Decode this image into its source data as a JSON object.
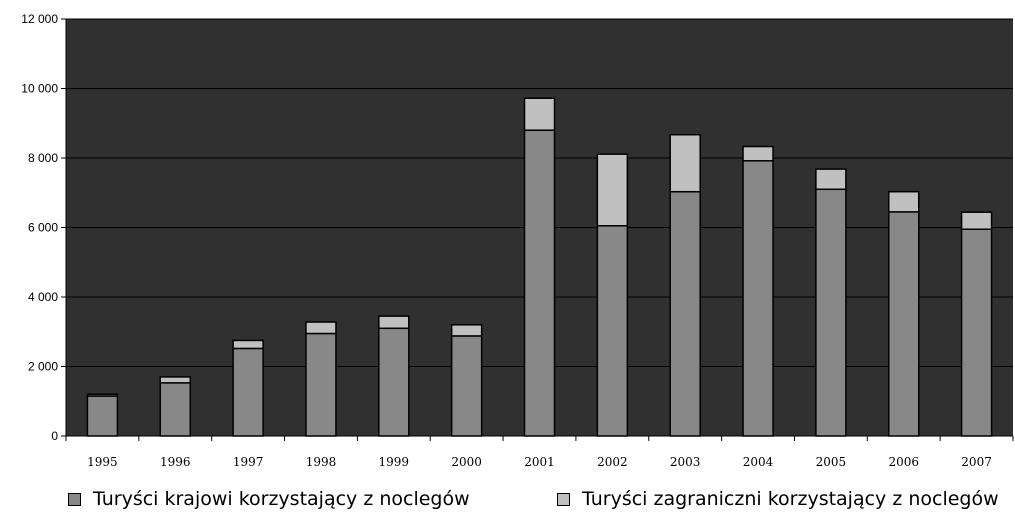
{
  "chart_data": {
    "type": "bar",
    "stacked": true,
    "title": "",
    "xlabel": "",
    "ylabel": "",
    "ylim": [
      0,
      12000
    ],
    "yticks": [
      0,
      2000,
      4000,
      6000,
      8000,
      10000,
      12000
    ],
    "ytick_labels": [
      "0",
      "2 000",
      "4 000",
      "6 000",
      "8 000",
      "10 000",
      "12 000"
    ],
    "grid": true,
    "legend_position": "bottom",
    "categories": [
      "1995",
      "1996",
      "1997",
      "1998",
      "1999",
      "2000",
      "2001",
      "2002",
      "2003",
      "2004",
      "2005",
      "2006",
      "2007"
    ],
    "series": [
      {
        "name": "Turyści krajowi korzystający z noclegów",
        "color": "#888888",
        "values": [
          1150,
          1530,
          2520,
          2950,
          3100,
          2880,
          8800,
          6050,
          7030,
          7920,
          7100,
          6450,
          5950
        ]
      },
      {
        "name": "Turyści zagraniczni korzystający z noclegów",
        "color": "#c0c0c0",
        "values": [
          50,
          170,
          230,
          330,
          350,
          320,
          920,
          2060,
          1640,
          410,
          580,
          580,
          490
        ]
      }
    ],
    "colors": {
      "plot_background": "#303030",
      "gridline": "#000000"
    }
  }
}
